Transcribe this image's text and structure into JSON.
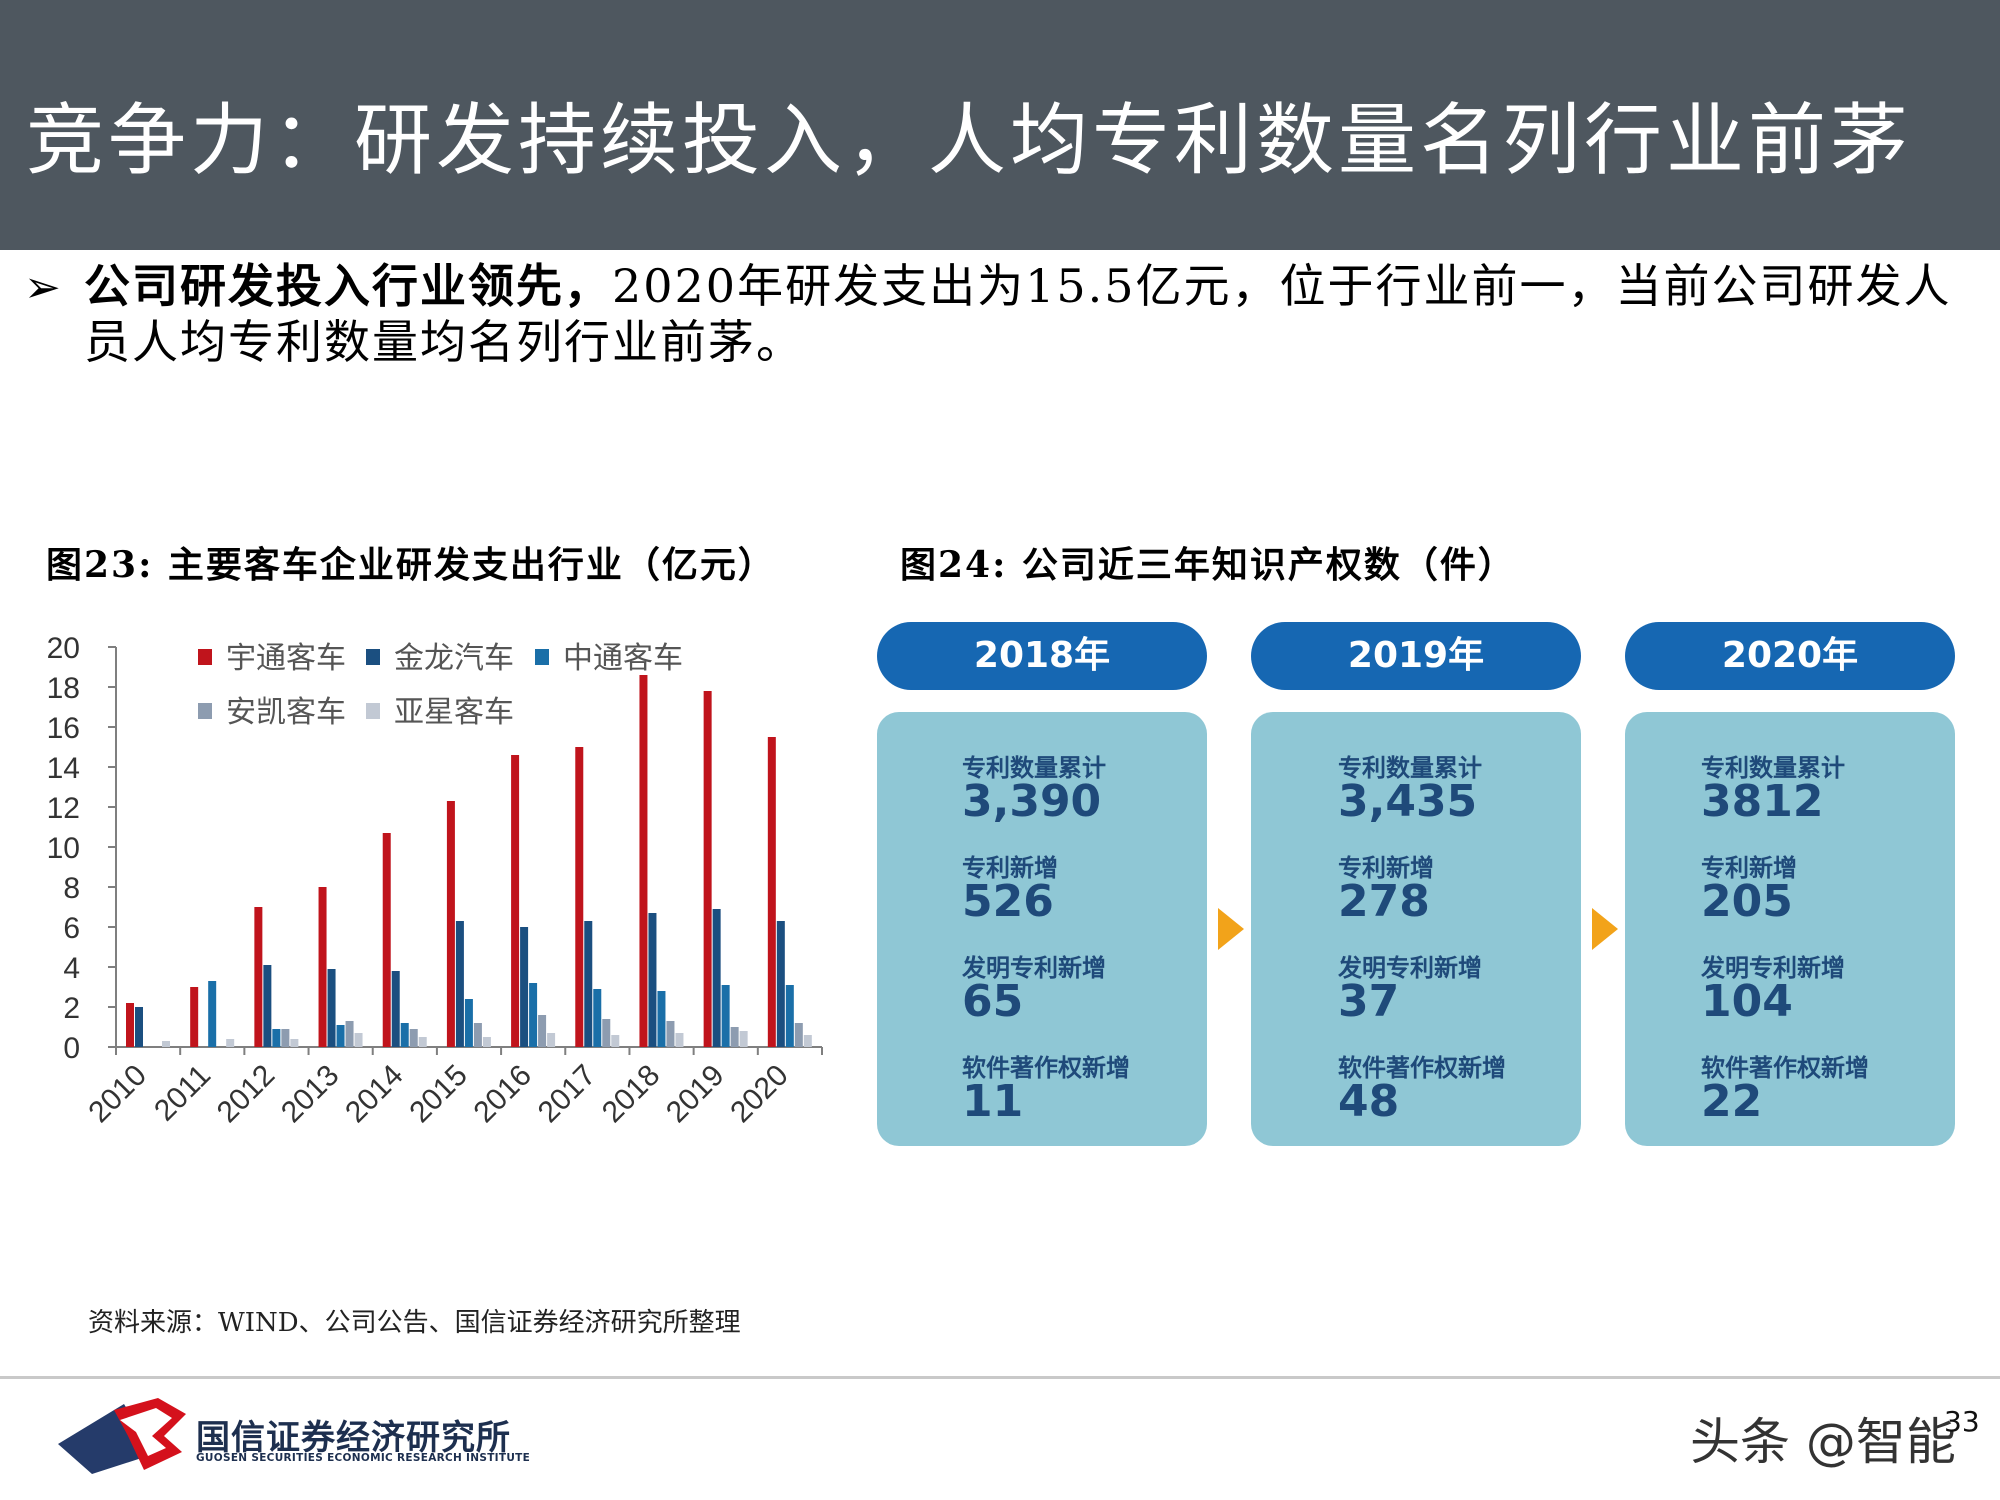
{
  "header": {
    "title": "竞争力：研发持续投入，人均专利数量名列行业前茅"
  },
  "bullet": {
    "arrow": "➢",
    "bold_text": "公司研发投入行业领先，",
    "text": "2020年研发支出为15.5亿元，位于行业前一，当前公司研发人员人均专利数量均名列行业前茅。"
  },
  "figure23": {
    "title": "图23:  主要客车企业研发支出行业（亿元）"
  },
  "figure24": {
    "title": "图24:  公司近三年知识产权数（件）"
  },
  "chart_data": {
    "type": "bar",
    "categories": [
      "2010",
      "2011",
      "2012",
      "2013",
      "2014",
      "2015",
      "2016",
      "2017",
      "2018",
      "2019",
      "2020"
    ],
    "series": [
      {
        "name": "宇通客车",
        "color": "#c0141c",
        "values": [
          2.2,
          3.0,
          7.0,
          8.0,
          10.7,
          12.3,
          14.6,
          15.0,
          18.6,
          17.8,
          15.5
        ]
      },
      {
        "name": "金龙汽车",
        "color": "#1b4f80",
        "values": [
          2.0,
          null,
          4.1,
          3.9,
          3.8,
          6.3,
          6.0,
          6.3,
          6.7,
          6.9,
          6.3
        ]
      },
      {
        "name": "中通客车",
        "color": "#1a6fa8",
        "values": [
          null,
          3.3,
          0.9,
          1.1,
          1.2,
          2.4,
          3.2,
          2.9,
          2.8,
          3.1,
          3.1
        ]
      },
      {
        "name": "安凯客车",
        "color": "#8d9cb0",
        "values": [
          null,
          null,
          0.9,
          1.3,
          0.9,
          1.2,
          1.6,
          1.4,
          1.3,
          1.0,
          1.2
        ]
      },
      {
        "name": "亚星客车",
        "color": "#c2c9d4",
        "values": [
          0.3,
          0.4,
          0.4,
          0.7,
          0.5,
          0.5,
          0.7,
          0.6,
          0.7,
          0.8,
          0.6
        ]
      }
    ],
    "ylim": [
      0,
      20
    ],
    "yticks": [
      0,
      2,
      4,
      6,
      8,
      10,
      12,
      14,
      16,
      18,
      20
    ],
    "legend_position": "top",
    "grid": false
  },
  "panels": [
    {
      "year": "2018年",
      "stats": [
        {
          "label": "专利数量累计",
          "value": "3,390"
        },
        {
          "label": "专利新增",
          "value": "526"
        },
        {
          "label": "发明专利新增",
          "value": "65"
        },
        {
          "label": "软件著作权新增",
          "value": "11"
        }
      ]
    },
    {
      "year": "2019年",
      "stats": [
        {
          "label": "专利数量累计",
          "value": "3,435"
        },
        {
          "label": "专利新增",
          "value": "278"
        },
        {
          "label": "发明专利新增",
          "value": "37"
        },
        {
          "label": "软件著作权新增",
          "value": "48"
        }
      ]
    },
    {
      "year": "2020年",
      "stats": [
        {
          "label": "专利数量累计",
          "value": "3812"
        },
        {
          "label": "专利新增",
          "value": "205"
        },
        {
          "label": "发明专利新增",
          "value": "104"
        },
        {
          "label": "软件著作权新增",
          "value": "22"
        }
      ]
    }
  ],
  "source": "资料来源：WIND、公司公告、国信证券经济研究所整理",
  "footer": {
    "logo_name": "国信证券经济研究所",
    "logo_sub": "GUOSEN SECURITIES ECONOMIC RESEARCH INSTITUTE",
    "page_number": "33",
    "watermark": "头条 @智能"
  },
  "colors": {
    "header_bg": "#4e575f",
    "panel_head": "#1667b2",
    "panel_box": "#8fc7d5",
    "arrow": "#f2a31a"
  }
}
